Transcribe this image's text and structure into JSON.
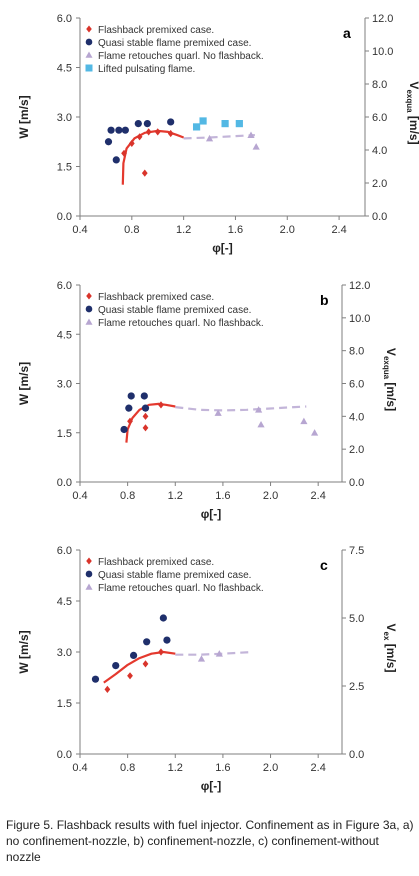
{
  "colors": {
    "flashback": "#d9342b",
    "stable": "#1f2f6b",
    "retouch": "#b7a6d1",
    "lifted": "#53b8e4",
    "fit_red": "#e4392e",
    "fit_dashed": "#c3b5d9",
    "axis": "#7f7f7f",
    "grid_tick": "#595959"
  },
  "chart_data": [
    {
      "type": "scatter",
      "panel_label": "a",
      "xlabel": "φ[-]",
      "ylabel": "W [m/s]",
      "y2label": "Vexqua [m/s]",
      "y2label_main": "V",
      "y2label_sub": "exqua",
      "y2label_unit": " [m/s]",
      "xlim": [
        0.4,
        2.6
      ],
      "ylim": [
        0.0,
        6.0
      ],
      "y2lim": [
        0.0,
        12.0
      ],
      "x_ticks": [
        "0.4",
        "0.8",
        "1.2",
        "1.6",
        "2.0",
        "2.4"
      ],
      "y_ticks": [
        "0.0",
        "1.5",
        "3.0",
        "4.5",
        "6.0"
      ],
      "y2_ticks": [
        "0.0",
        "2.0",
        "4.0",
        "6.0",
        "8.0",
        "10.0",
        "12.0"
      ],
      "legend_position": "top-left",
      "series": [
        {
          "name": "Flashback premixed case.",
          "marker": "diamond",
          "color": "#d9342b",
          "x": [
            0.74,
            0.8,
            0.86,
            0.93,
            1.0,
            1.1,
            0.9
          ],
          "y": [
            1.9,
            2.2,
            2.4,
            2.55,
            2.55,
            2.5,
            1.3
          ]
        },
        {
          "name": "Quasi stable  flame premixed case.",
          "marker": "circle",
          "color": "#1f2f6b",
          "x": [
            0.62,
            0.64,
            0.7,
            0.75,
            0.85,
            0.92,
            1.1,
            0.68
          ],
          "y": [
            2.25,
            2.6,
            2.6,
            2.6,
            2.8,
            2.8,
            2.85,
            1.7
          ]
        },
        {
          "name": "Flame retouches quarl. No flashback.",
          "marker": "triangle",
          "color": "#b7a6d1",
          "x": [
            1.4,
            1.72,
            1.76
          ],
          "y": [
            2.35,
            2.45,
            2.1
          ]
        },
        {
          "name": "Lifted pulsating  flame.",
          "marker": "square",
          "color": "#53b8e4",
          "x": [
            1.3,
            1.35,
            1.52,
            1.63
          ],
          "y": [
            2.7,
            2.88,
            2.8,
            2.8
          ]
        }
      ],
      "fit_solid": {
        "color": "#e4392e",
        "x": [
          0.73,
          0.735,
          0.76,
          0.82,
          0.9,
          1.0,
          1.08,
          1.15,
          1.2
        ],
        "y": [
          0.95,
          1.6,
          2.05,
          2.35,
          2.52,
          2.58,
          2.55,
          2.45,
          2.38
        ]
      },
      "fit_dashed": {
        "color": "#c3b5d9",
        "x": [
          1.2,
          1.4,
          1.6,
          1.75
        ],
        "y": [
          2.35,
          2.38,
          2.42,
          2.45
        ]
      }
    },
    {
      "type": "scatter",
      "panel_label": "b",
      "xlabel": "φ[-]",
      "ylabel": "W [m/s]",
      "y2label": "Vexqua [m/s]",
      "y2label_main": "V",
      "y2label_sub": "exqua",
      "y2label_unit": " [m/s]",
      "xlim": [
        0.4,
        2.6
      ],
      "ylim": [
        0.0,
        6.0
      ],
      "y2lim": [
        0.0,
        12.0
      ],
      "x_ticks": [
        "0.4",
        "0.8",
        "1.2",
        "1.6",
        "2.0",
        "2.4"
      ],
      "y_ticks": [
        "0.0",
        "1.5",
        "3.0",
        "4.5",
        "6.0"
      ],
      "y2_ticks": [
        "0.0",
        "2.0",
        "4.0",
        "6.0",
        "8.0",
        "10.0",
        "12.0"
      ],
      "legend_position": "top-left",
      "series": [
        {
          "name": "Flashback premixed case.",
          "marker": "diamond",
          "color": "#d9342b",
          "x": [
            0.82,
            0.95,
            0.95,
            1.08
          ],
          "y": [
            1.85,
            2.0,
            1.65,
            2.35
          ]
        },
        {
          "name": "Quasi stable  flame premixed case.",
          "marker": "circle",
          "color": "#1f2f6b",
          "x": [
            0.77,
            0.81,
            0.83,
            0.94,
            0.95
          ],
          "y": [
            1.6,
            2.25,
            2.62,
            2.62,
            2.25
          ]
        },
        {
          "name": "Flame retouches quarl. No flashback.",
          "marker": "triangle",
          "color": "#b7a6d1",
          "x": [
            1.56,
            1.9,
            1.92,
            2.28,
            2.37
          ],
          "y": [
            2.1,
            2.2,
            1.75,
            1.85,
            1.5
          ]
        }
      ],
      "fit_solid": {
        "color": "#e4392e",
        "x": [
          0.79,
          0.8,
          0.84,
          0.9,
          0.98,
          1.06,
          1.12,
          1.2
        ],
        "y": [
          1.2,
          1.6,
          1.95,
          2.2,
          2.35,
          2.38,
          2.35,
          2.3
        ]
      },
      "fit_dashed": {
        "color": "#c3b5d9",
        "x": [
          1.2,
          1.4,
          1.6,
          1.8,
          2.0,
          2.2,
          2.3
        ],
        "y": [
          2.28,
          2.2,
          2.18,
          2.2,
          2.24,
          2.28,
          2.3
        ]
      }
    },
    {
      "type": "scatter",
      "panel_label": "c",
      "xlabel": "φ[-]",
      "ylabel": "W [m/s]",
      "y2label": "Vex [m/s]",
      "y2label_main": "V",
      "y2label_sub": "ex",
      "y2label_unit": " [m/s]",
      "xlim": [
        0.4,
        2.6
      ],
      "ylim": [
        0.0,
        6.0
      ],
      "y2lim": [
        0.0,
        7.5
      ],
      "x_ticks": [
        "0.4",
        "0.8",
        "1.2",
        "1.6",
        "2.0",
        "2.4"
      ],
      "y_ticks": [
        "0.0",
        "1.5",
        "3.0",
        "4.5",
        "6.0"
      ],
      "y2_ticks": [
        "0.0",
        "2.5",
        "5.0",
        "7.5"
      ],
      "legend_position": "top-left",
      "series": [
        {
          "name": "Flashback premixed case.",
          "marker": "diamond",
          "color": "#d9342b",
          "x": [
            0.63,
            0.82,
            0.95,
            1.08
          ],
          "y": [
            1.9,
            2.3,
            2.65,
            3.0
          ]
        },
        {
          "name": "Quasi stable  flame premixed case.",
          "marker": "circle",
          "color": "#1f2f6b",
          "x": [
            0.53,
            0.7,
            0.85,
            0.96,
            1.1,
            1.13
          ],
          "y": [
            2.2,
            2.6,
            2.9,
            3.3,
            4.0,
            3.35
          ]
        },
        {
          "name": "Flame retouches quarl. No flashback.",
          "marker": "triangle",
          "color": "#b7a6d1",
          "x": [
            1.42,
            1.57
          ],
          "y": [
            2.8,
            2.95
          ]
        }
      ],
      "fit_solid": {
        "color": "#e4392e",
        "x": [
          0.6,
          0.7,
          0.8,
          0.9,
          1.0,
          1.1,
          1.2
        ],
        "y": [
          2.1,
          2.35,
          2.62,
          2.82,
          2.95,
          3.0,
          2.95
        ]
      },
      "fit_dashed": {
        "color": "#c3b5d9",
        "x": [
          1.2,
          1.4,
          1.6,
          1.85
        ],
        "y": [
          2.92,
          2.92,
          2.95,
          3.0
        ]
      }
    }
  ],
  "caption": "Figure 5. Flashback results with fuel injector. Confinement as in Figure 3a, a) no confinement-nozzle, b) confinement-nozzle, c) confinement-without nozzle"
}
